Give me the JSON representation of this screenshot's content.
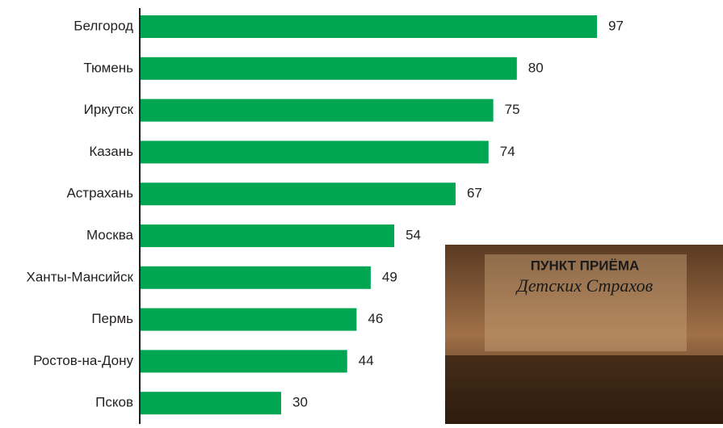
{
  "chart_data": {
    "type": "hbar",
    "categories": [
      "Белгород",
      "Тюмень",
      "Иркутск",
      "Казань",
      "Астрахань",
      "Москва",
      "Ханты-Мансийск",
      "Пермь",
      "Ростов-на-Дону",
      "Псков"
    ],
    "values": [
      97,
      80,
      75,
      74,
      67,
      54,
      49,
      46,
      44,
      30
    ],
    "color": "#00a651",
    "annotations": [
      "ПУНКТ ПРИЁМА",
      "Детских Страхов"
    ]
  }
}
